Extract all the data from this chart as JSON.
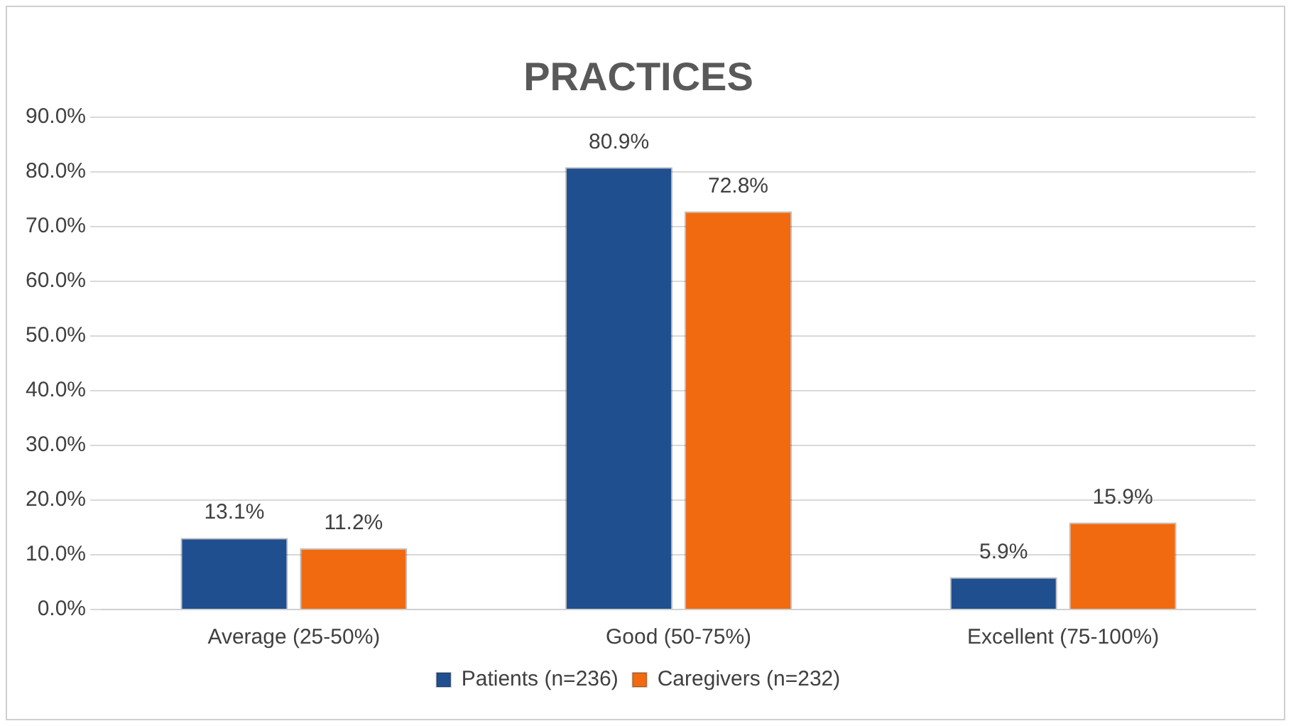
{
  "chart_data": {
    "type": "bar",
    "title": "PRACTICES",
    "categories": [
      "Average (25-50%)",
      "Good (50-75%)",
      "Excellent (75-100%)"
    ],
    "series": [
      {
        "name": "Patients (n=236)",
        "color": "#1f4f8f",
        "values": [
          13.1,
          80.9,
          5.9
        ],
        "value_labels": [
          "13.1%",
          "80.9%",
          "5.9%"
        ]
      },
      {
        "name": "Caregivers (n=232)",
        "color": "#f26a10",
        "values": [
          11.2,
          72.8,
          15.9
        ],
        "value_labels": [
          "11.2%",
          "72.8%",
          "15.9%"
        ]
      }
    ],
    "ylim": [
      0,
      90
    ],
    "yticks": [
      {
        "value": 0,
        "label": "0.0%"
      },
      {
        "value": 10,
        "label": "10.0%"
      },
      {
        "value": 20,
        "label": "20.0%"
      },
      {
        "value": 30,
        "label": "30.0%"
      },
      {
        "value": 40,
        "label": "40.0%"
      },
      {
        "value": 50,
        "label": "50.0%"
      },
      {
        "value": 60,
        "label": "60.0%"
      },
      {
        "value": 70,
        "label": "70.0%"
      },
      {
        "value": 80,
        "label": "80.0%"
      },
      {
        "value": 90,
        "label": "90.0%"
      }
    ],
    "grid": "y",
    "legend": "bottom"
  }
}
